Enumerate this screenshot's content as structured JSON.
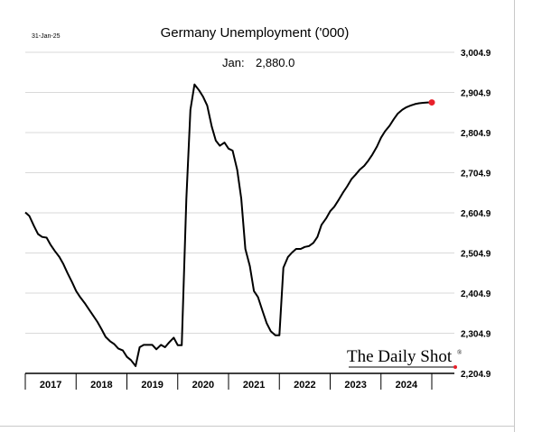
{
  "chart_data": {
    "type": "line",
    "title": "Germany Unemployment ('000)",
    "date_stamp": "31-Jan-25",
    "latest_label": "Jan:",
    "latest_value_text": "2,880.0",
    "brand": "The Daily Shot",
    "brand_mark": "®",
    "ylim": [
      2204.9,
      3004.9
    ],
    "yticks": [
      "3,004.9",
      "2,904.9",
      "2,804.9",
      "2,704.9",
      "2,604.9",
      "2,504.9",
      "2,404.9",
      "2,304.9",
      "2,204.9"
    ],
    "ytick_values": [
      3004.9,
      2904.9,
      2804.9,
      2704.9,
      2604.9,
      2504.9,
      2404.9,
      2304.9,
      2204.9
    ],
    "xlim": [
      2017.0,
      2025.0
    ],
    "xticks": [
      "2017",
      "2018",
      "2019",
      "2020",
      "2021",
      "2022",
      "2023",
      "2024"
    ],
    "grid": true,
    "highlight_color": "#e8202a",
    "line_color": "#000000",
    "series": [
      {
        "x": [
          2017.0,
          2017.08,
          2017.17,
          2017.25,
          2017.33,
          2017.42,
          2017.5,
          2017.58,
          2017.67,
          2017.75,
          2017.83,
          2017.92,
          2018.0,
          2018.08,
          2018.17,
          2018.25,
          2018.33,
          2018.42,
          2018.5,
          2018.58,
          2018.67,
          2018.75,
          2018.83,
          2018.92,
          2019.0,
          2019.08,
          2019.17,
          2019.25,
          2019.33,
          2019.42,
          2019.5,
          2019.58,
          2019.67,
          2019.75,
          2019.83,
          2019.92,
          2020.0,
          2020.08,
          2020.17,
          2020.25,
          2020.33,
          2020.42,
          2020.5,
          2020.58,
          2020.67,
          2020.75,
          2020.83,
          2020.92,
          2021.0,
          2021.08,
          2021.17,
          2021.25,
          2021.33,
          2021.42,
          2021.5,
          2021.58,
          2021.67,
          2021.75,
          2021.83,
          2021.92,
          2022.0,
          2022.08,
          2022.17,
          2022.25,
          2022.33,
          2022.42,
          2022.5,
          2022.58,
          2022.67,
          2022.75,
          2022.83,
          2022.92,
          2023.0,
          2023.08,
          2023.17,
          2023.25,
          2023.33,
          2023.42,
          2023.5,
          2023.58,
          2023.67,
          2023.75,
          2023.83,
          2023.92,
          2024.0,
          2024.08,
          2024.17,
          2024.25,
          2024.33,
          2024.42,
          2024.5,
          2024.58,
          2024.67,
          2024.75,
          2024.83,
          2024.92,
          2025.0
        ],
        "values": [
          2606,
          2597,
          2572,
          2552,
          2545,
          2543,
          2525,
          2510,
          2495,
          2477,
          2455,
          2432,
          2410,
          2395,
          2380,
          2365,
          2350,
          2333,
          2315,
          2296,
          2285,
          2278,
          2267,
          2262,
          2246,
          2238,
          2223,
          2270,
          2276,
          2276,
          2276,
          2265,
          2276,
          2270,
          2282,
          2294,
          2275,
          2275,
          2640,
          2862,
          2925,
          2910,
          2894,
          2872,
          2820,
          2785,
          2772,
          2780,
          2765,
          2760,
          2712,
          2640,
          2515,
          2472,
          2410,
          2395,
          2360,
          2330,
          2310,
          2300,
          2300,
          2468,
          2495,
          2506,
          2515,
          2515,
          2520,
          2522,
          2530,
          2545,
          2575,
          2591,
          2609,
          2620,
          2638,
          2655,
          2670,
          2689,
          2700,
          2712,
          2722,
          2735,
          2750,
          2770,
          2792,
          2808,
          2822,
          2838,
          2852,
          2862,
          2868,
          2872,
          2876,
          2878,
          2879,
          2880,
          2880
        ]
      }
    ]
  }
}
